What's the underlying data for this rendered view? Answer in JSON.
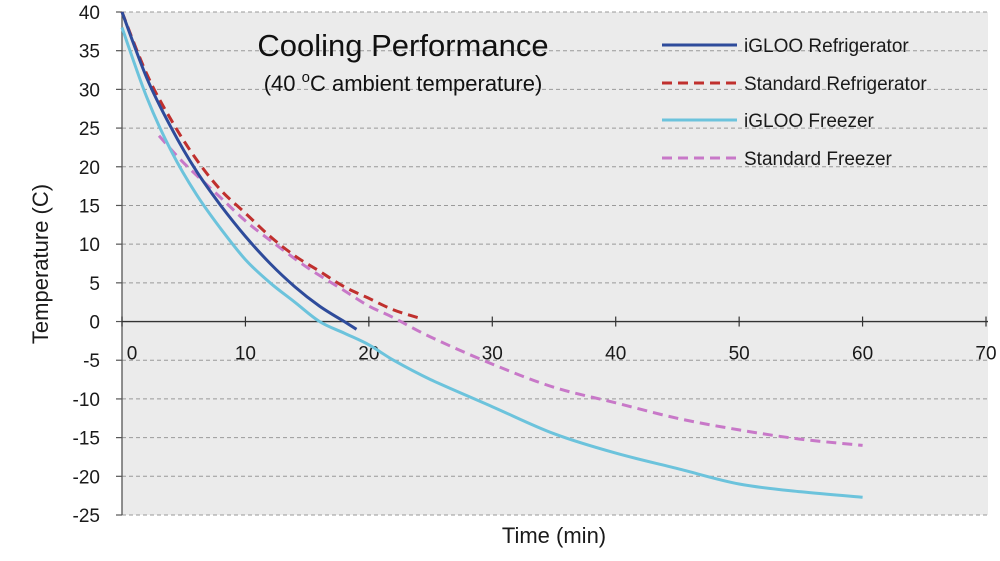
{
  "chart_data": {
    "type": "line",
    "title": "Cooling Performance",
    "subtitle_prefix": "(40 ",
    "subtitle_sup": "o",
    "subtitle_suffix": "C ambient temperature)",
    "xlabel": "Time (min)",
    "ylabel": "Temperature (C)",
    "xlim": [
      0,
      70
    ],
    "ylim": [
      -25,
      40
    ],
    "xticks": [
      0,
      10,
      20,
      30,
      40,
      50,
      60,
      70
    ],
    "yticks": [
      40,
      35,
      30,
      25,
      20,
      15,
      10,
      5,
      0,
      -5,
      -10,
      -15,
      -20,
      -25
    ],
    "grid": true,
    "legend_position": "top-right",
    "series": [
      {
        "name": "iGLOO Refrigerator",
        "color": "#2e4b9b",
        "dash": "solid",
        "points": [
          [
            0,
            40
          ],
          [
            2,
            31.5
          ],
          [
            4,
            25
          ],
          [
            6,
            19.5
          ],
          [
            8,
            15
          ],
          [
            10,
            11
          ],
          [
            12,
            7.5
          ],
          [
            14,
            4.5
          ],
          [
            16,
            2
          ],
          [
            18,
            0
          ],
          [
            19,
            -1
          ]
        ]
      },
      {
        "name": "Standard Refrigerator",
        "color": "#c0302e",
        "dash": "dashed",
        "points": [
          [
            0,
            40
          ],
          [
            2,
            32
          ],
          [
            4,
            26
          ],
          [
            6,
            21
          ],
          [
            8,
            17
          ],
          [
            10,
            14
          ],
          [
            12,
            11
          ],
          [
            14,
            8.5
          ],
          [
            16,
            6.5
          ],
          [
            18,
            4.5
          ],
          [
            20,
            3
          ],
          [
            22,
            1.5
          ],
          [
            24,
            0.5
          ]
        ]
      },
      {
        "name": "iGLOO Freezer",
        "color": "#6cc3dc",
        "dash": "solid",
        "points": [
          [
            0,
            38
          ],
          [
            2,
            29
          ],
          [
            4,
            22
          ],
          [
            6,
            16.5
          ],
          [
            8,
            12
          ],
          [
            10,
            8
          ],
          [
            12,
            5
          ],
          [
            14,
            2.5
          ],
          [
            16,
            0
          ],
          [
            18,
            -1.5
          ],
          [
            20,
            -3
          ],
          [
            22,
            -5
          ],
          [
            25,
            -7.5
          ],
          [
            30,
            -11
          ],
          [
            35,
            -14.5
          ],
          [
            40,
            -17
          ],
          [
            45,
            -19
          ],
          [
            50,
            -21
          ],
          [
            55,
            -22
          ],
          [
            60,
            -22.7
          ]
        ]
      },
      {
        "name": "Standard Freezer",
        "color": "#c878c8",
        "dash": "dashed",
        "points": [
          [
            3,
            24
          ],
          [
            5,
            20.5
          ],
          [
            8,
            16
          ],
          [
            10,
            13
          ],
          [
            12,
            10.5
          ],
          [
            15,
            7
          ],
          [
            18,
            4
          ],
          [
            20,
            2
          ],
          [
            22,
            0.5
          ],
          [
            25,
            -2
          ],
          [
            30,
            -5.5
          ],
          [
            35,
            -8.5
          ],
          [
            40,
            -10.5
          ],
          [
            45,
            -12.5
          ],
          [
            50,
            -14
          ],
          [
            55,
            -15.2
          ],
          [
            60,
            -16
          ]
        ]
      }
    ]
  }
}
